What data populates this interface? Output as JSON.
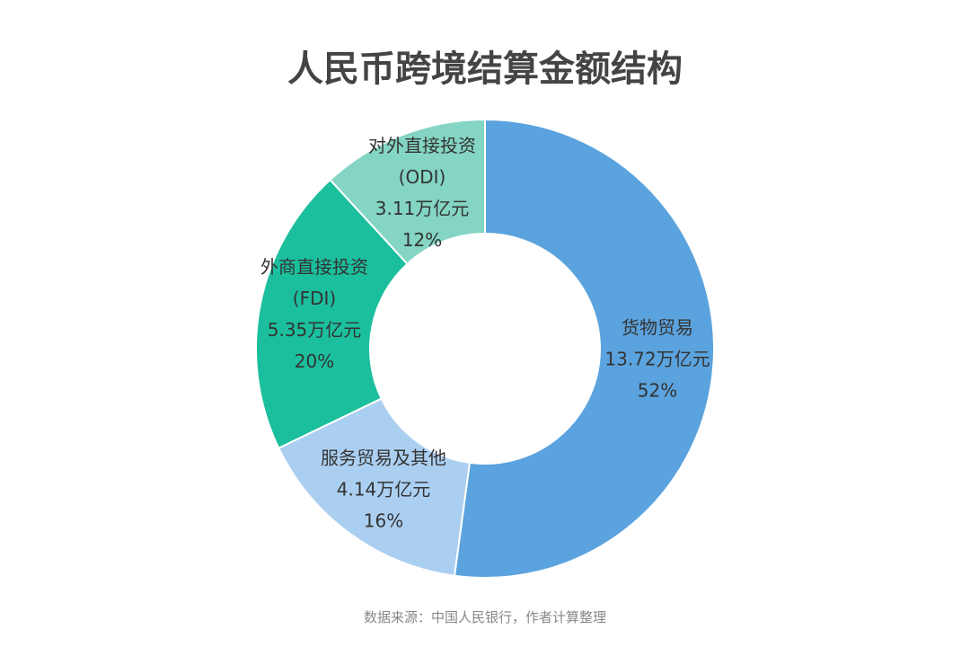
{
  "chart_data": {
    "type": "donut",
    "title": "人民币跨境结算金额结构",
    "categories": [
      "货物贸易",
      "服务贸易及其他",
      "外商直接投资\n(FDI)",
      "对外直接投资\n(ODI)"
    ],
    "values": [
      13.72,
      4.14,
      5.35,
      3.11
    ],
    "value_labels": [
      "13.72万亿元",
      "4.14万亿元",
      "5.35万亿元",
      "3.11万亿元"
    ],
    "percent_labels": [
      "52%",
      "16%",
      "20%",
      "12%"
    ],
    "colors": [
      "#5ba3de",
      "#abcff1",
      "#1bbf9d",
      "#84d5c3"
    ],
    "source": "数据来源：中国人民银行，作者计算整理"
  }
}
